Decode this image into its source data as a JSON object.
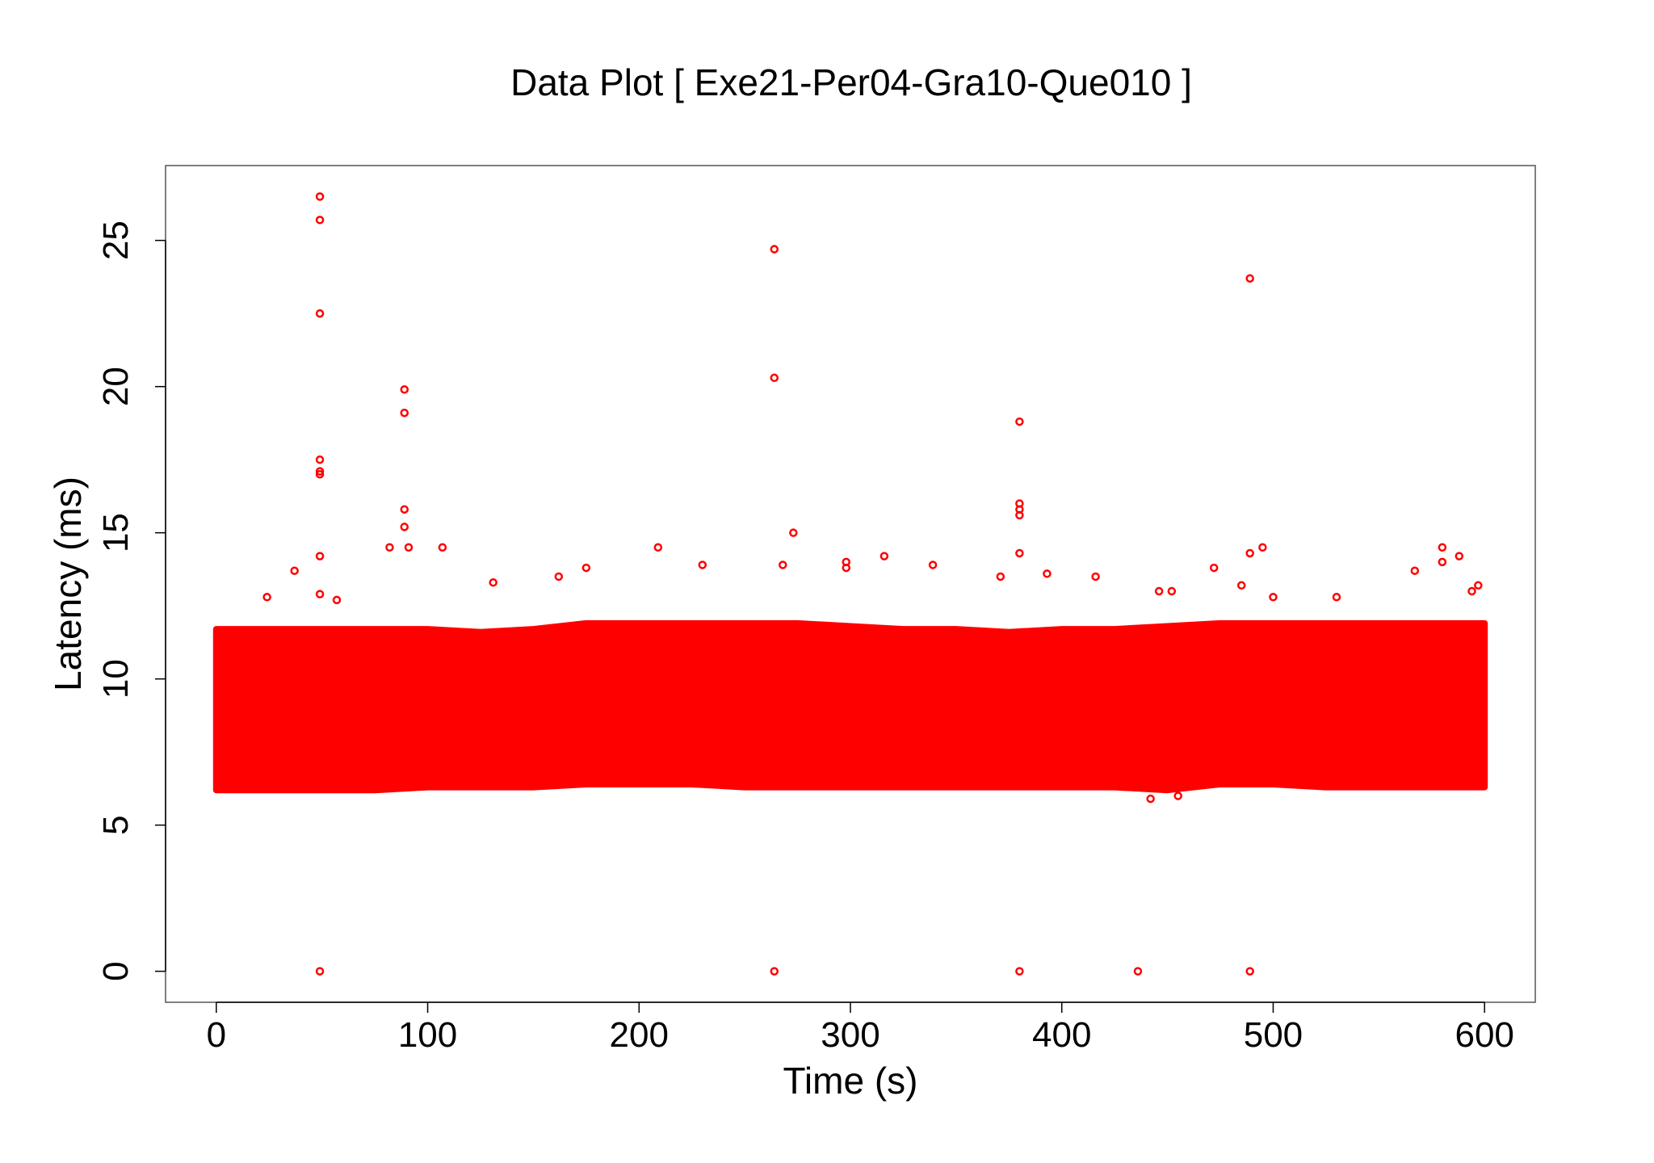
{
  "chart_data": {
    "type": "scatter",
    "title": "Data Plot [ Exe21-Per04-Gra10-Que010 ]",
    "x_label": "Time (s)",
    "y_label": "Latency (ms)",
    "color": "#ff0000",
    "xlim": [
      -24,
      624
    ],
    "ylim": [
      -1.06,
      27.56
    ],
    "xticks": [
      0,
      100,
      200,
      300,
      400,
      500,
      600
    ],
    "yticks": [
      0,
      5,
      10,
      15,
      20,
      25
    ],
    "band": {
      "x": [
        0,
        25,
        50,
        75,
        100,
        125,
        150,
        175,
        200,
        225,
        250,
        275,
        300,
        325,
        350,
        375,
        400,
        425,
        450,
        475,
        500,
        525,
        550,
        575,
        600
      ],
      "lower": [
        6.2,
        6.2,
        6.2,
        6.2,
        6.3,
        6.3,
        6.3,
        6.4,
        6.4,
        6.4,
        6.3,
        6.3,
        6.3,
        6.3,
        6.3,
        6.3,
        6.3,
        6.3,
        6.2,
        6.4,
        6.4,
        6.3,
        6.3,
        6.3,
        6.3
      ],
      "upper": [
        11.7,
        11.7,
        11.7,
        11.7,
        11.7,
        11.6,
        11.7,
        11.9,
        11.9,
        11.9,
        11.9,
        11.9,
        11.8,
        11.7,
        11.7,
        11.6,
        11.7,
        11.7,
        11.8,
        11.9,
        11.9,
        11.9,
        11.9,
        11.9,
        11.9
      ]
    },
    "x": [
      49,
      49,
      49,
      49,
      49,
      49,
      49,
      49,
      49,
      89,
      89,
      89,
      89,
      91,
      82,
      107,
      264,
      264,
      264,
      380,
      380,
      380,
      380,
      380,
      380,
      436,
      489,
      489,
      495,
      489,
      273,
      298,
      298,
      316,
      339,
      209,
      230,
      371,
      393,
      416,
      472,
      580,
      580,
      588,
      37,
      162,
      175,
      24,
      57,
      131,
      268,
      446,
      452,
      485,
      567,
      597,
      594,
      500,
      530,
      442,
      455
    ],
    "values": [
      26.5,
      25.7,
      22.5,
      17.5,
      17.1,
      17.0,
      14.2,
      12.9,
      0,
      19.9,
      19.1,
      15.8,
      15.2,
      14.5,
      14.5,
      14.5,
      24.7,
      20.3,
      0,
      18.8,
      16.0,
      15.8,
      15.6,
      14.3,
      0,
      0,
      23.7,
      14.3,
      14.5,
      0,
      15.0,
      14.0,
      13.8,
      14.2,
      13.9,
      14.5,
      13.9,
      13.5,
      13.6,
      13.5,
      13.8,
      14.5,
      14.0,
      14.2,
      13.7,
      13.5,
      13.8,
      12.8,
      12.7,
      13.3,
      13.9,
      13.0,
      13.0,
      13.2,
      13.7,
      13.2,
      13.0,
      12.8,
      12.8,
      5.9,
      6.0
    ]
  }
}
